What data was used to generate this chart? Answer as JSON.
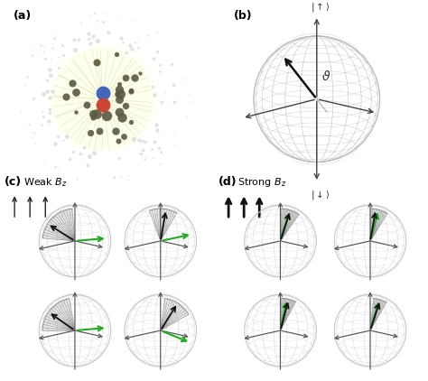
{
  "fig_width": 4.74,
  "fig_height": 4.22,
  "bg_color": "#ffffff",
  "panel_labels": [
    "(a)",
    "(b)",
    "(c)",
    "(d)"
  ],
  "panel_label_fontsize": 9,
  "grid_color": "#bbbbbb",
  "grid_alpha": 0.5,
  "arrow_color": "#333333",
  "green_color": "#22aa22",
  "yellow_circle_color": "#fffff0",
  "blue_dot_color": "#4466bb",
  "red_dot_color": "#cc4433",
  "dark_dot_color": "#5a5a40",
  "outer_dot_color": "#bbbbbb",
  "cone_color_weak": "#888888",
  "cone_color_strong": "#888888"
}
